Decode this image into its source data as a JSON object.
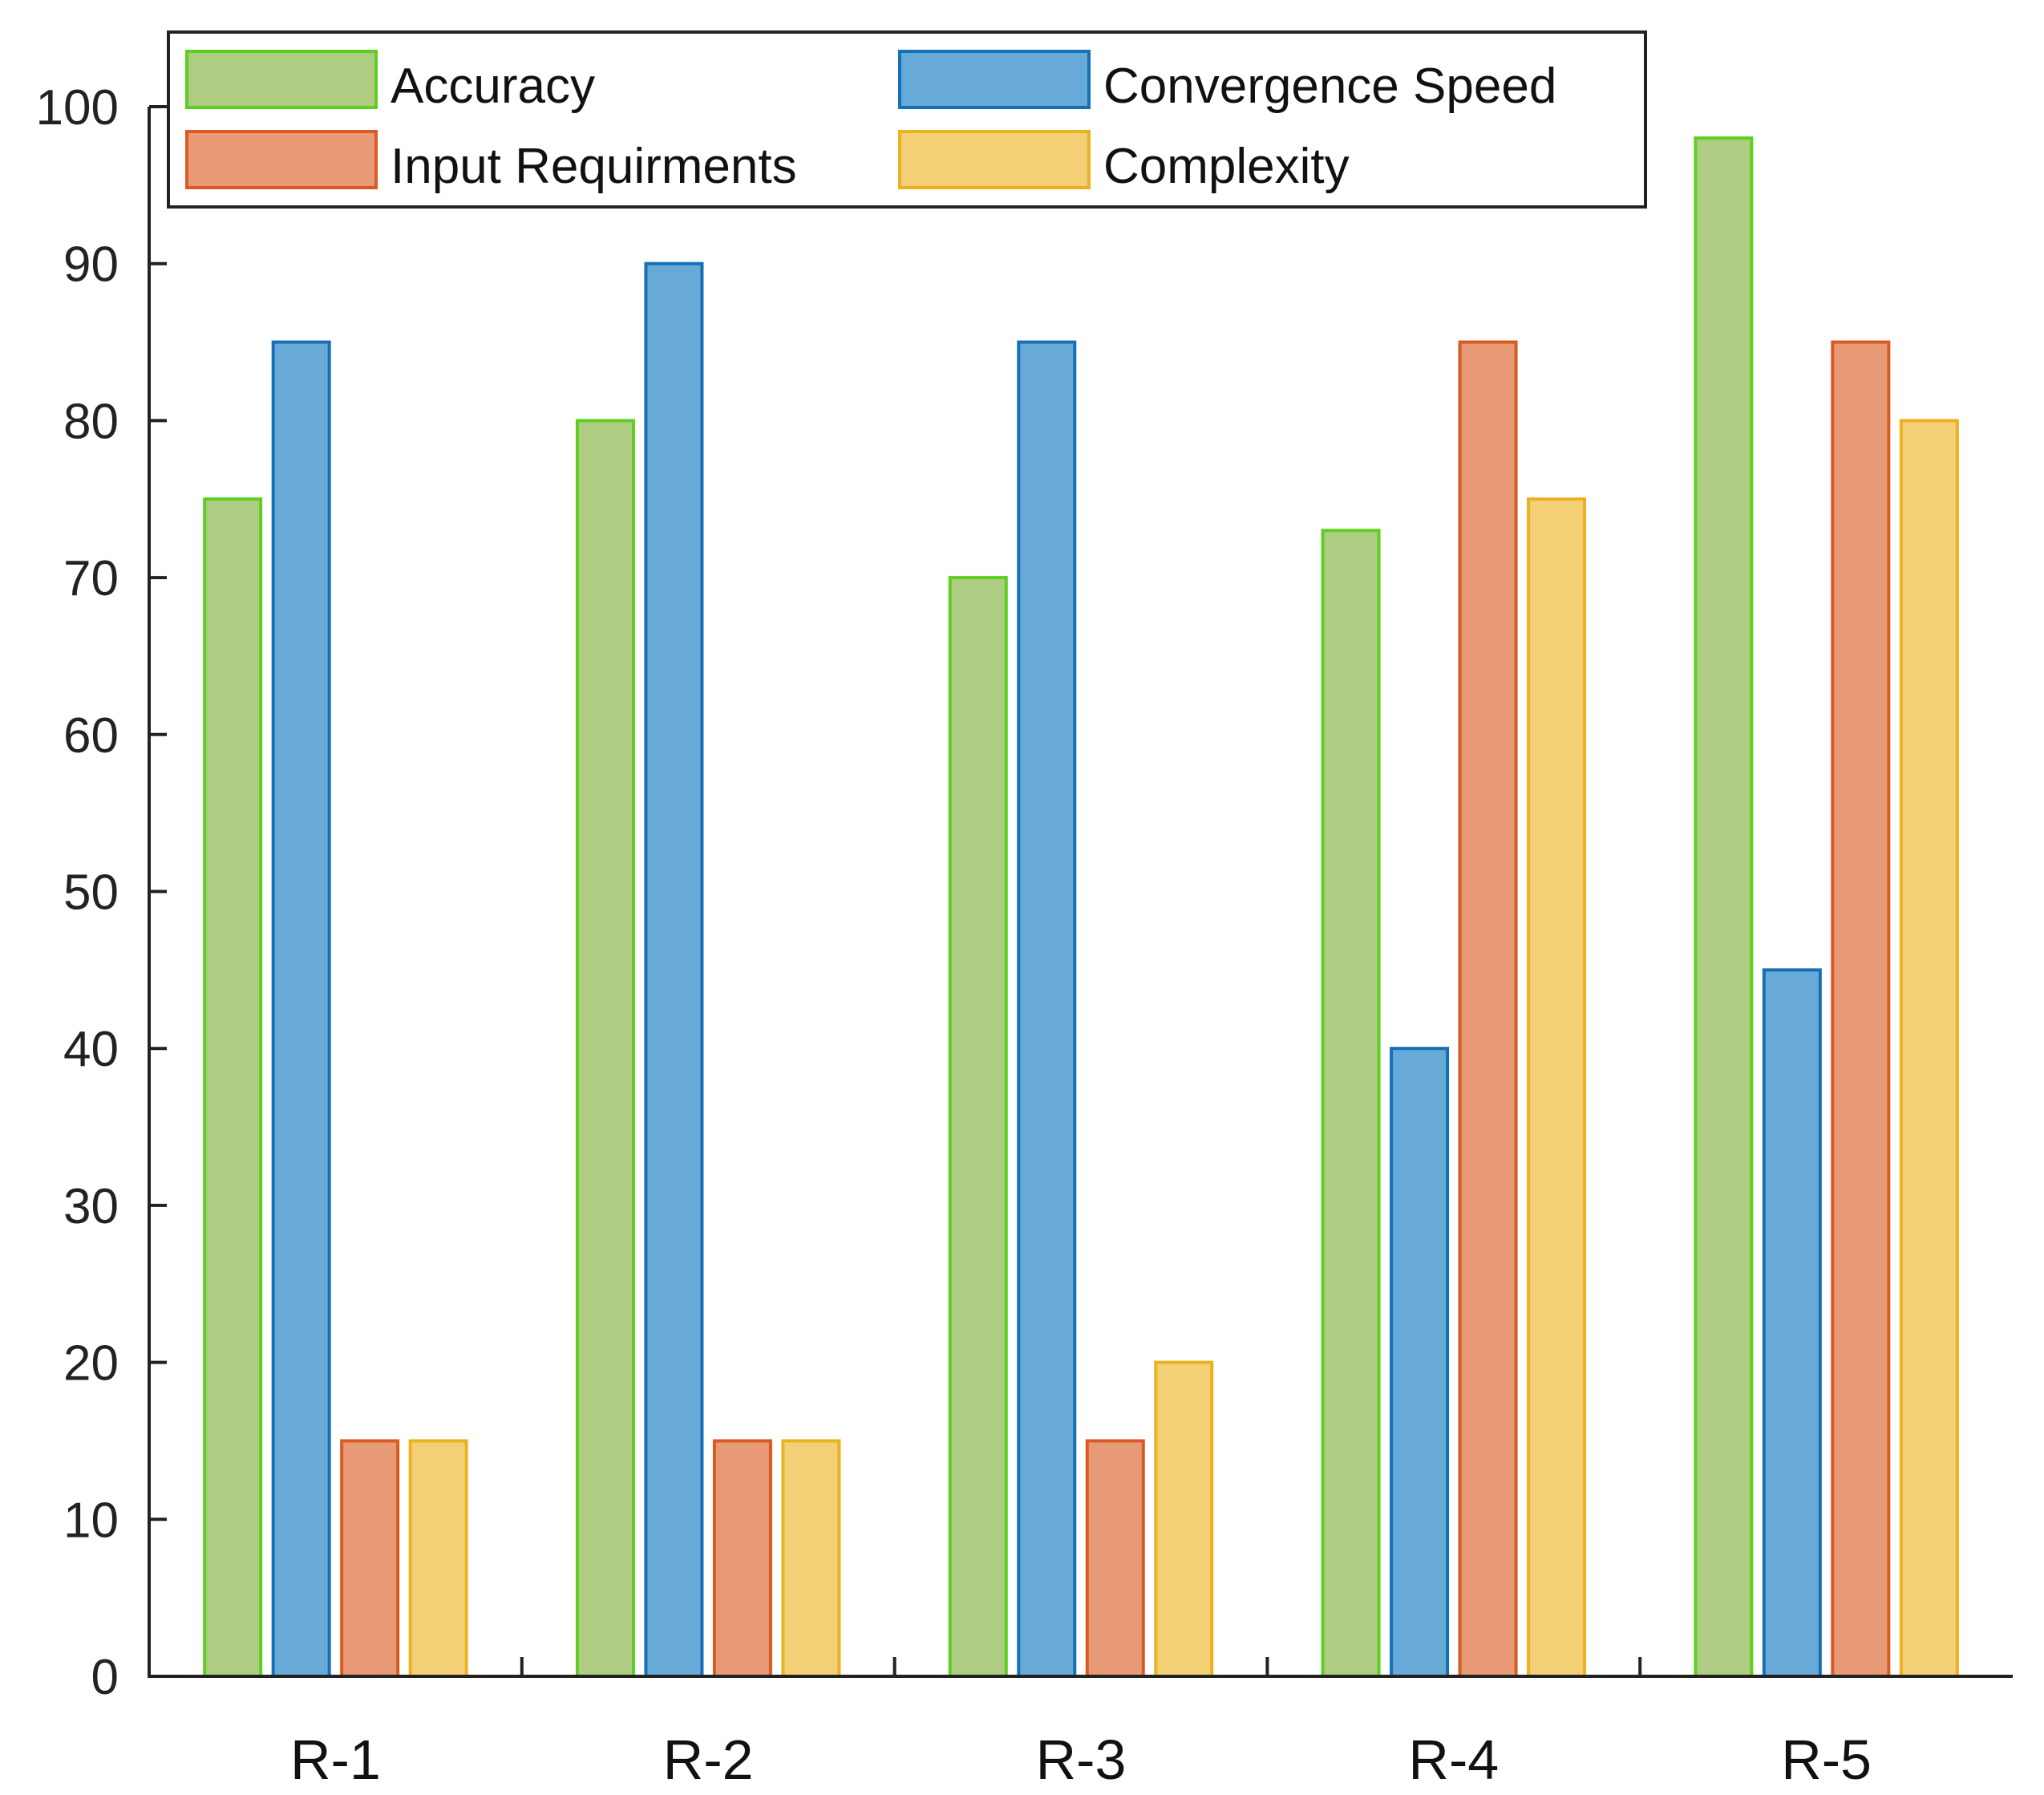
{
  "chart_data": {
    "type": "bar",
    "title": "",
    "xlabel": "",
    "ylabel": "",
    "categories": [
      "R-1",
      "R-2",
      "R-3",
      "R-4",
      "R-5"
    ],
    "ylim": [
      0,
      100
    ],
    "yticks": [
      0,
      10,
      20,
      30,
      40,
      50,
      60,
      70,
      80,
      90,
      100
    ],
    "grid": false,
    "legend_position": "top-left",
    "series": [
      {
        "name": "Accuracy",
        "values": [
          75,
          80,
          70,
          73,
          98
        ],
        "fill": "#aecd82",
        "stroke": "#5fce23"
      },
      {
        "name": "Convergence Speed",
        "values": [
          85,
          90,
          85,
          40,
          45
        ],
        "fill": "#67aad8",
        "stroke": "#1570b8"
      },
      {
        "name": "Input Requirments",
        "values": [
          15,
          15,
          15,
          85,
          85
        ],
        "fill": "#e89975",
        "stroke": "#d95b23"
      },
      {
        "name": "Complexity",
        "values": [
          15,
          15,
          20,
          75,
          80
        ],
        "fill": "#f3d076",
        "stroke": "#ecb121"
      }
    ]
  }
}
